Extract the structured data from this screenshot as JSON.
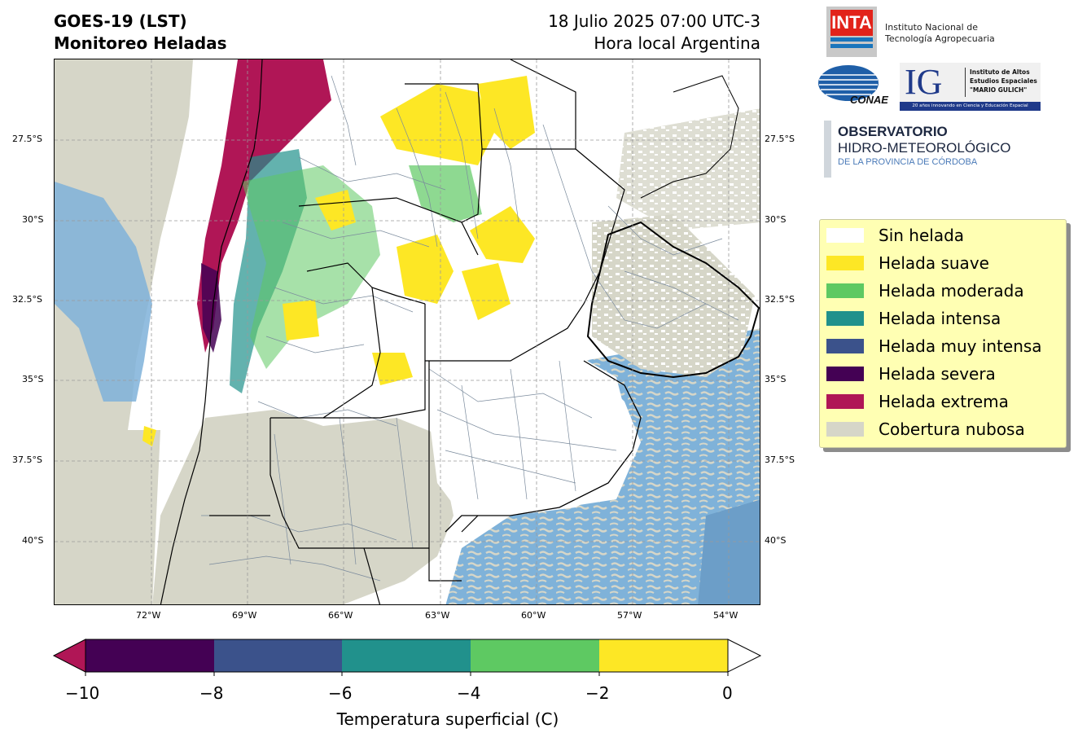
{
  "header": {
    "title_line1": "GOES-19 (LST)",
    "title_line2": "Monitoreo Heladas",
    "date_line1": "18 Julio 2025 07:00 UTC-3",
    "date_line2": "Hora local Argentina"
  },
  "map": {
    "lat_labels": [
      "27.5°S",
      "30°S",
      "32.5°S",
      "35°S",
      "37.5°S",
      "40°S"
    ],
    "lon_labels": [
      "72°W",
      "69°W",
      "66°W",
      "63°W",
      "60°W",
      "57°W",
      "54°W"
    ],
    "layers": [
      "frost-classification",
      "cloud-cover",
      "ocean",
      "province-borders",
      "department-borders",
      "gridlines"
    ]
  },
  "legend": {
    "items": [
      {
        "label": "Sin helada",
        "color": "#ffffff"
      },
      {
        "label": "Helada suave",
        "color": "#fde725"
      },
      {
        "label": "Helada moderada",
        "color": "#5ec962"
      },
      {
        "label": "Helada intensa",
        "color": "#21918c"
      },
      {
        "label": "Helada muy intensa",
        "color": "#3b528b"
      },
      {
        "label": "Helada severa",
        "color": "#440154"
      },
      {
        "label": "Helada extrema",
        "color": "#b01656"
      },
      {
        "label": "Cobertura nubosa",
        "color": "#d6d6c8"
      }
    ]
  },
  "colorbar": {
    "label": "Temperatura superficial (C)",
    "ticks": [
      "−10",
      "−8",
      "−6",
      "−4",
      "−2",
      "0"
    ],
    "segments": [
      "#440154",
      "#3b528b",
      "#21918c",
      "#5ec962",
      "#fde725"
    ],
    "under_color": "#b01656",
    "over_color": "#ffffff"
  },
  "logos": {
    "inta_mark": "INTA",
    "inta_name_1": "Instituto Nacional de",
    "inta_name_2": "Tecnología Agropecuaria",
    "conae_mark": "CONAE",
    "ig_mark": "IG",
    "ig_name_1": "Instituto de Altos",
    "ig_name_2": "Estudios Espaciales",
    "ig_name_3": "\"MARIO GULICH\"",
    "ig_tagline": "20 años innovando en Ciencia y Educación Espacial",
    "obs_line1": "OBSERVATORIO",
    "obs_line2": "HIDRO-METEOROLÓGICO",
    "obs_line3": "DE LA PROVINCIA DE CÓRDOBA"
  }
}
